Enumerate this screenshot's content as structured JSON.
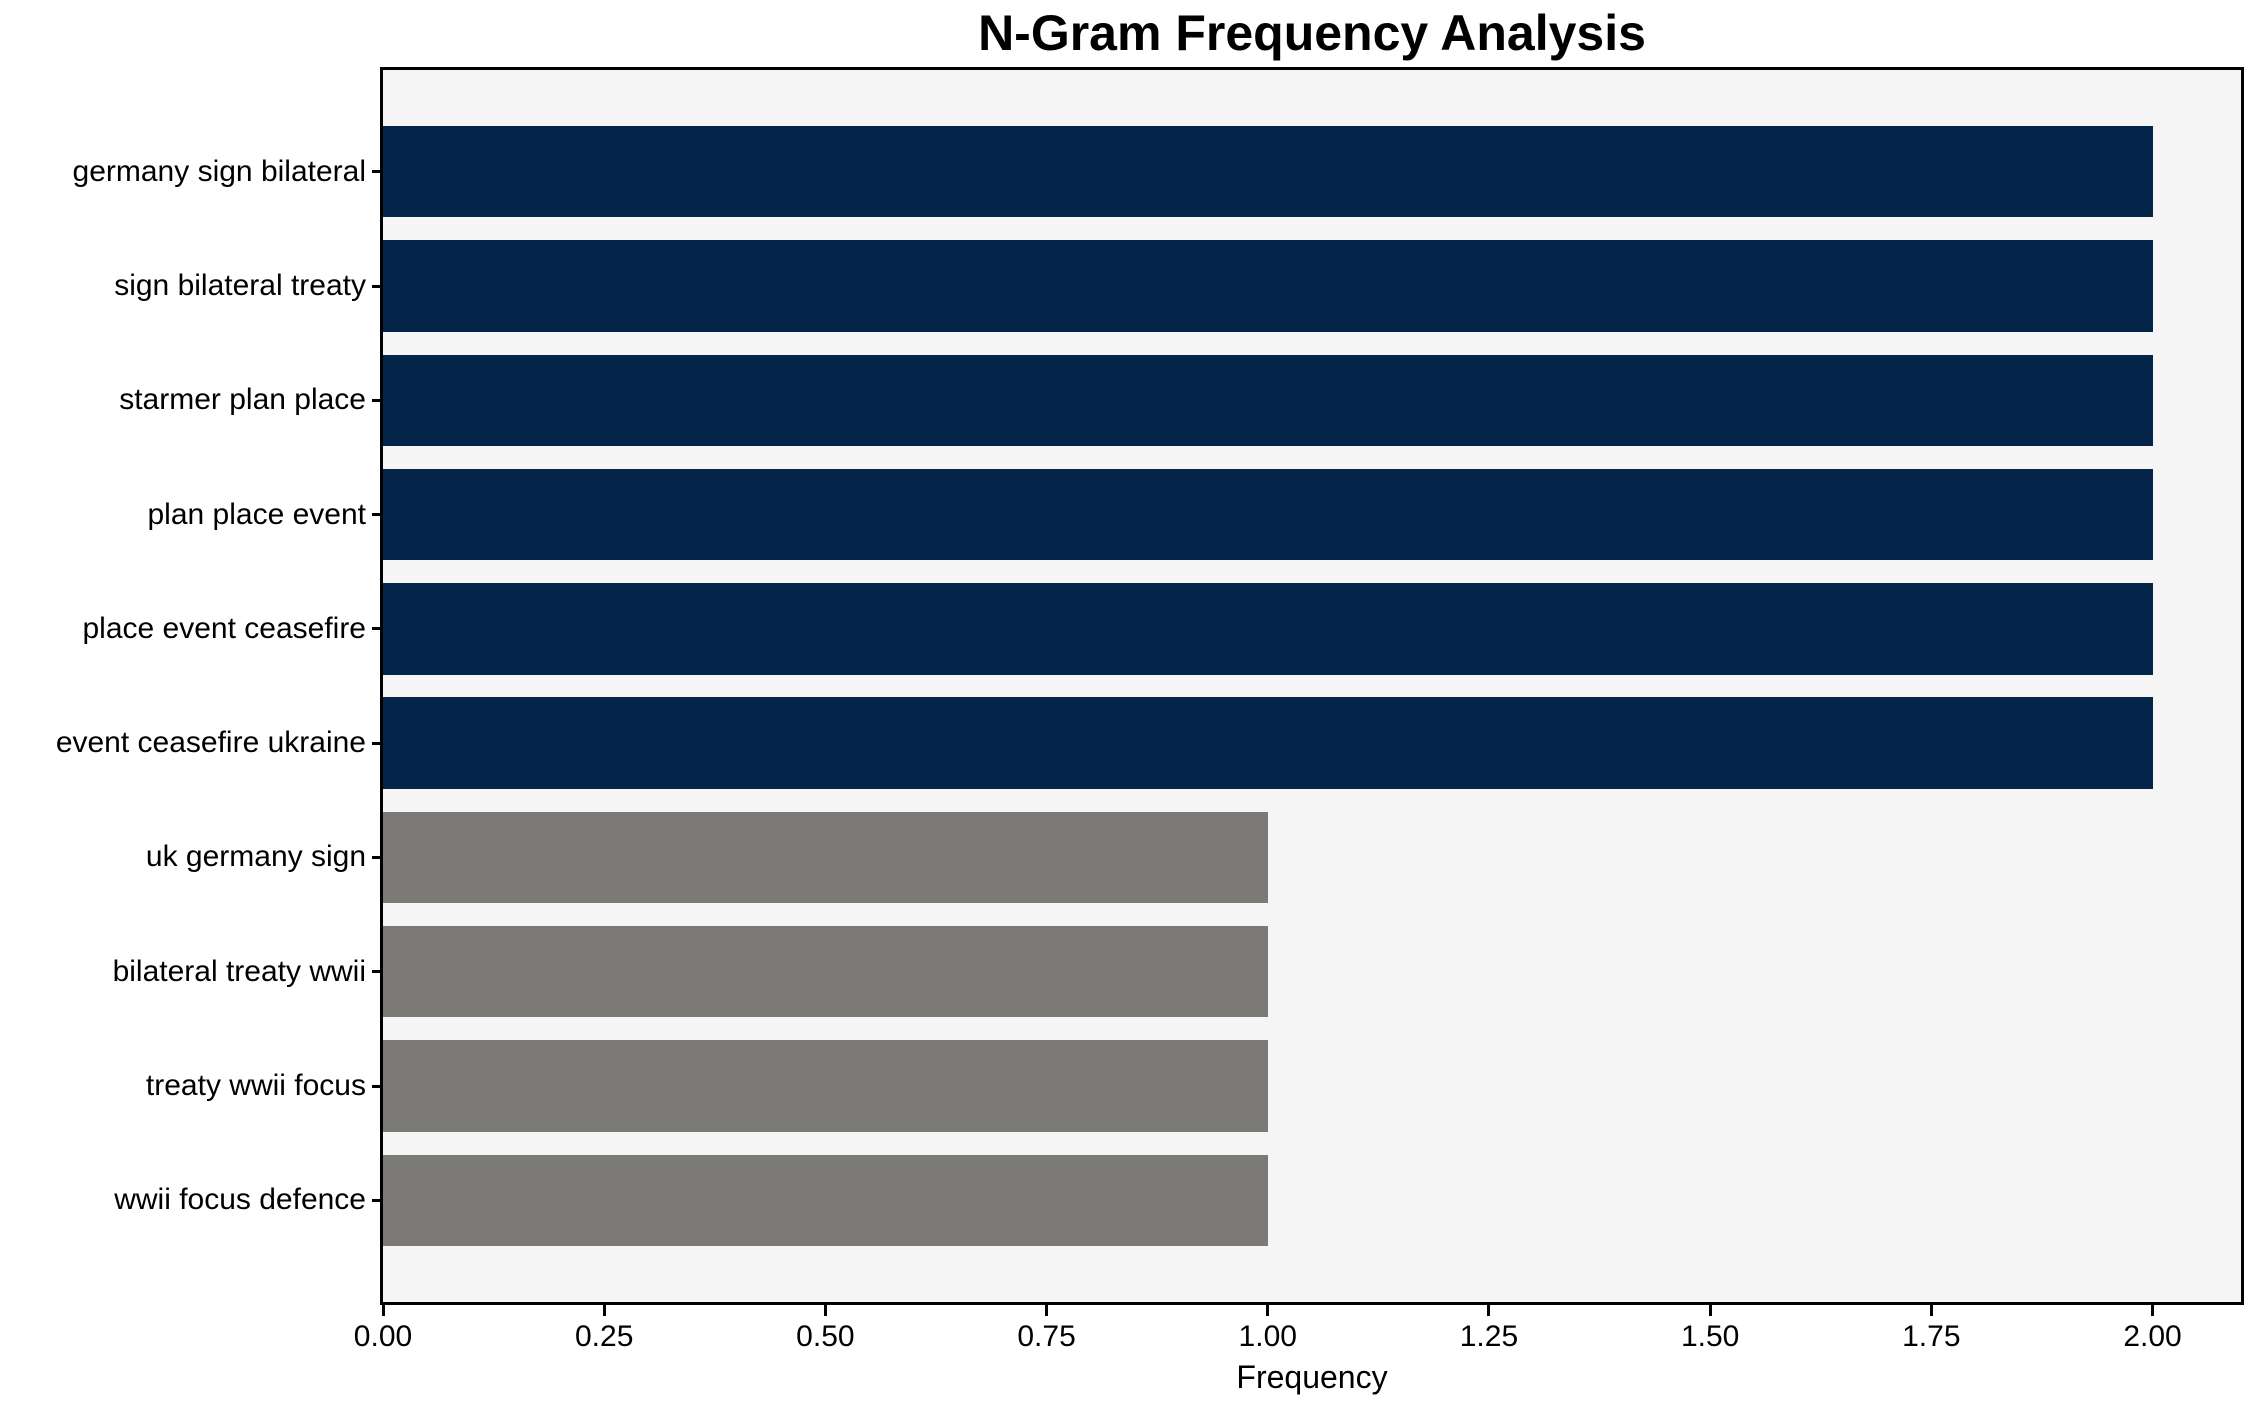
{
  "chart_data": {
    "type": "bar",
    "orientation": "horizontal",
    "title": "N-Gram Frequency Analysis",
    "xlabel": "Frequency",
    "ylabel": "",
    "categories": [
      "germany sign bilateral",
      "sign bilateral treaty",
      "starmer plan place",
      "plan place event",
      "place event ceasefire",
      "event ceasefire ukraine",
      "uk germany sign",
      "bilateral treaty wwii",
      "treaty wwii focus",
      "wwii focus defence"
    ],
    "values": [
      2,
      2,
      2,
      2,
      2,
      2,
      1,
      1,
      1,
      1
    ],
    "bar_colors": [
      "#042449",
      "#042449",
      "#042449",
      "#042449",
      "#042449",
      "#042449",
      "#7b7a77",
      "#7b7a77",
      "#7b7a77",
      "#7b7a77"
    ],
    "xlim": [
      0,
      2.1
    ],
    "xticks": [
      {
        "value": 0.0,
        "label": "0.00"
      },
      {
        "value": 0.25,
        "label": "0.25"
      },
      {
        "value": 0.5,
        "label": "0.50"
      },
      {
        "value": 0.75,
        "label": "0.75"
      },
      {
        "value": 1.0,
        "label": "1.00"
      },
      {
        "value": 1.25,
        "label": "1.25"
      },
      {
        "value": 1.5,
        "label": "1.50"
      },
      {
        "value": 1.75,
        "label": "1.75"
      },
      {
        "value": 2.0,
        "label": "2.00"
      }
    ],
    "grid": false,
    "legend": null,
    "plot_background": "#f5f5f5",
    "figure_background": "#ffffff",
    "spine_color": "#000000"
  }
}
